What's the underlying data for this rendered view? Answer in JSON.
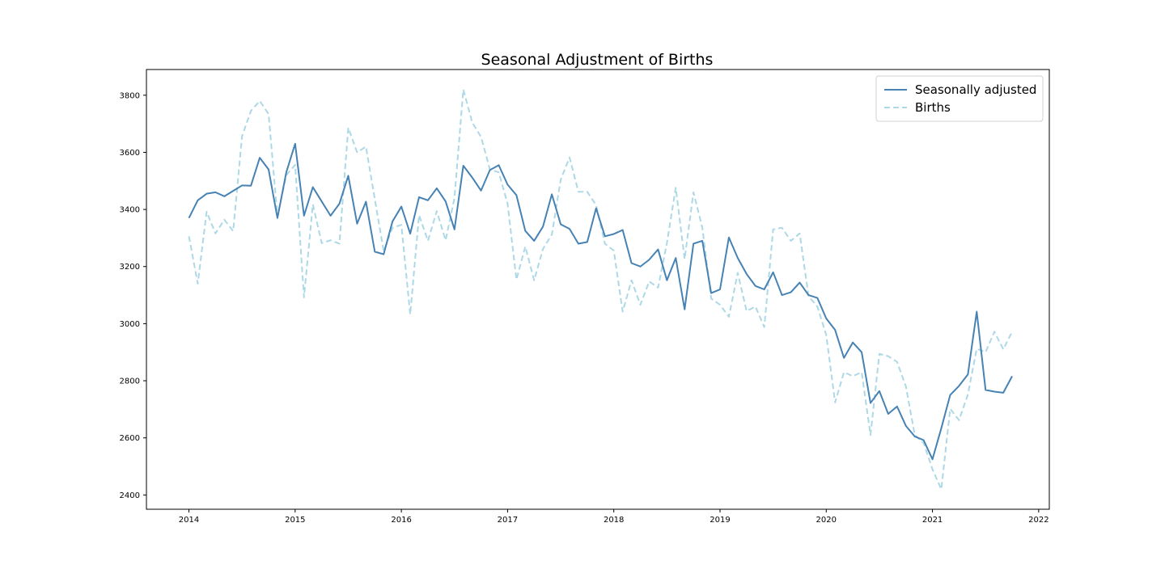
{
  "chart_data": {
    "type": "line",
    "title": "Seasonal Adjustment of Births",
    "xlabel": "",
    "ylabel": "",
    "x_start": "2014-01",
    "x_frequency": "monthly",
    "xlim": [
      2013.6,
      2022.1
    ],
    "ylim": [
      2350,
      3890
    ],
    "x_ticks": [
      2014,
      2015,
      2016,
      2017,
      2018,
      2019,
      2020,
      2021,
      2022
    ],
    "x_tick_labels": [
      "2014",
      "2015",
      "2016",
      "2017",
      "2018",
      "2019",
      "2020",
      "2021",
      "2022"
    ],
    "y_ticks": [
      2400,
      2600,
      2800,
      3000,
      3200,
      3400,
      3600,
      3800
    ],
    "y_tick_labels": [
      "2400",
      "2600",
      "2800",
      "3000",
      "3200",
      "3400",
      "3600",
      "3800"
    ],
    "grid": false,
    "legend_position": "top-right",
    "series": [
      {
        "name": "Seasonally adjusted",
        "color": "#4682b4",
        "style": "solid",
        "values": [
          3370,
          3432,
          3455,
          3460,
          3446,
          3465,
          3484,
          3483,
          3581,
          3540,
          3370,
          3530,
          3630,
          3378,
          3478,
          3428,
          3378,
          3420,
          3518,
          3350,
          3427,
          3252,
          3243,
          3358,
          3410,
          3315,
          3443,
          3432,
          3474,
          3428,
          3330,
          3553,
          3512,
          3466,
          3538,
          3555,
          3487,
          3450,
          3325,
          3290,
          3340,
          3453,
          3348,
          3332,
          3280,
          3286,
          3404,
          3306,
          3314,
          3328,
          3212,
          3200,
          3224,
          3260,
          3152,
          3230,
          3050,
          3280,
          3290,
          3107,
          3120,
          3302,
          3230,
          3174,
          3132,
          3120,
          3180,
          3100,
          3110,
          3144,
          3100,
          3090,
          3018,
          2978,
          2880,
          2934,
          2900,
          2722,
          2764,
          2684,
          2710,
          2642,
          2605,
          2592,
          2525,
          2634,
          2750,
          2782,
          2822,
          3042,
          2768,
          2762,
          2758,
          2816
        ]
      },
      {
        "name": "Births",
        "color": "#add8e6",
        "style": "dashed",
        "values": [
          3306,
          3140,
          3392,
          3316,
          3364,
          3324,
          3656,
          3745,
          3780,
          3734,
          3375,
          3520,
          3556,
          3092,
          3418,
          3282,
          3292,
          3280,
          3686,
          3600,
          3620,
          3436,
          3254,
          3336,
          3346,
          3032,
          3380,
          3290,
          3394,
          3292,
          3440,
          3820,
          3705,
          3654,
          3540,
          3530,
          3420,
          3154,
          3270,
          3152,
          3262,
          3312,
          3504,
          3582,
          3462,
          3462,
          3415,
          3280,
          3256,
          3042,
          3152,
          3066,
          3148,
          3126,
          3282,
          3476,
          3226,
          3460,
          3336,
          3088,
          3066,
          3024,
          3178,
          3044,
          3060,
          2988,
          3330,
          3336,
          3290,
          3316,
          3096,
          3060,
          2960,
          2724,
          2830,
          2816,
          2830,
          2610,
          2894,
          2886,
          2866,
          2780,
          2610,
          2582,
          2490,
          2420,
          2702,
          2662,
          2752,
          2912,
          2900,
          2972,
          2910,
          2972
        ]
      }
    ]
  }
}
